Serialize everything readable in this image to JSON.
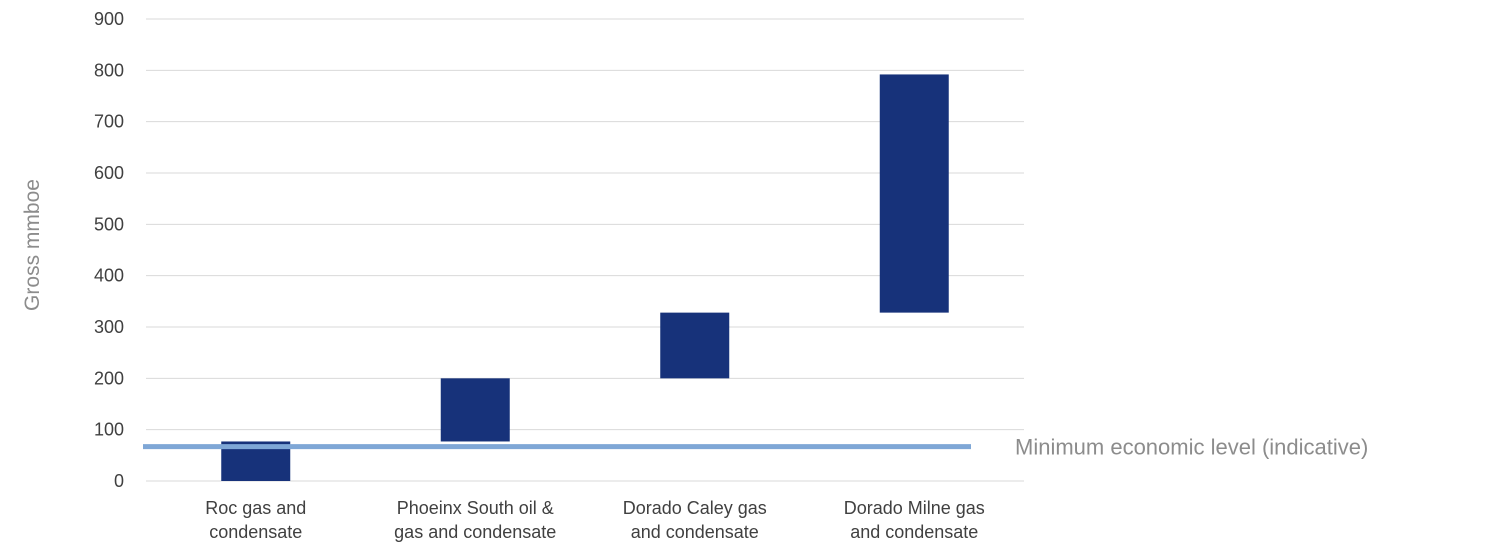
{
  "chart_data": {
    "type": "bar",
    "subtype": "floating-stacked",
    "title": "",
    "xlabel": "",
    "ylabel": "Gross mmboe",
    "ylim": [
      0,
      900
    ],
    "yticks": [
      0,
      100,
      200,
      300,
      400,
      500,
      600,
      700,
      800,
      900
    ],
    "grid": true,
    "categories": [
      [
        "Roc gas and",
        "condensate"
      ],
      [
        "Phoeinx South oil &",
        "gas and condensate"
      ],
      [
        "Dorado Caley gas",
        "and condensate"
      ],
      [
        "Dorado Milne gas",
        "and condensate"
      ]
    ],
    "bars": [
      {
        "base": 0,
        "top": 77
      },
      {
        "base": 77,
        "top": 200
      },
      {
        "base": 200,
        "top": 328
      },
      {
        "base": 328,
        "top": 792
      }
    ],
    "bar_color": "#17327a",
    "reference_line": {
      "value": 67,
      "label": "Minimum economic level (indicative)",
      "color": "#7fa7d6"
    }
  }
}
